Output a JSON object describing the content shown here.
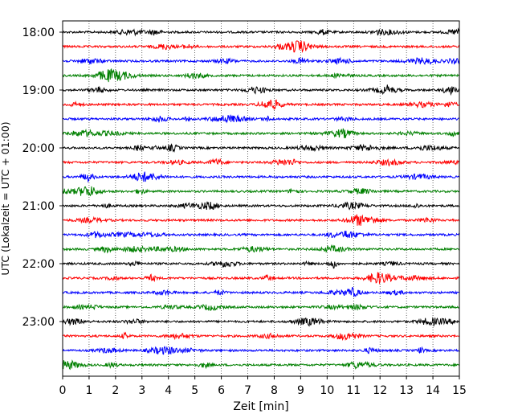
{
  "chart_data": {
    "type": "line",
    "title": "",
    "xlabel": "Zeit  [min]",
    "ylabel": "UTC (Lokalzeit = UTC + 01:00)",
    "xlim": [
      0,
      15
    ],
    "x_ticks": [
      "0",
      "1",
      "2",
      "3",
      "4",
      "5",
      "6",
      "7",
      "8",
      "9",
      "10",
      "11",
      "12",
      "13",
      "14",
      "15"
    ],
    "y_ticks": [
      "18:00",
      "19:00",
      "20:00",
      "21:00",
      "22:00",
      "23:00"
    ],
    "grid": {
      "vertical": true,
      "style": "dotted"
    },
    "trace_colors": [
      "#000000",
      "#ff0000",
      "#0000ff",
      "#008000"
    ],
    "traces": [
      {
        "start": "18:00",
        "color": "#000000"
      },
      {
        "start": "18:15",
        "color": "#ff0000"
      },
      {
        "start": "18:30",
        "color": "#0000ff"
      },
      {
        "start": "18:45",
        "color": "#008000"
      },
      {
        "start": "19:00",
        "color": "#000000"
      },
      {
        "start": "19:15",
        "color": "#ff0000"
      },
      {
        "start": "19:30",
        "color": "#0000ff"
      },
      {
        "start": "19:45",
        "color": "#008000"
      },
      {
        "start": "20:00",
        "color": "#000000"
      },
      {
        "start": "20:15",
        "color": "#ff0000"
      },
      {
        "start": "20:30",
        "color": "#0000ff"
      },
      {
        "start": "20:45",
        "color": "#008000"
      },
      {
        "start": "21:00",
        "color": "#000000"
      },
      {
        "start": "21:15",
        "color": "#ff0000"
      },
      {
        "start": "21:30",
        "color": "#0000ff"
      },
      {
        "start": "21:45",
        "color": "#008000"
      },
      {
        "start": "22:00",
        "color": "#000000"
      },
      {
        "start": "22:15",
        "color": "#ff0000"
      },
      {
        "start": "22:30",
        "color": "#0000ff"
      },
      {
        "start": "22:45",
        "color": "#008000"
      },
      {
        "start": "23:00",
        "color": "#000000"
      },
      {
        "start": "23:15",
        "color": "#ff0000"
      },
      {
        "start": "23:30",
        "color": "#0000ff"
      },
      {
        "start": "23:45",
        "color": "#008000"
      }
    ]
  }
}
